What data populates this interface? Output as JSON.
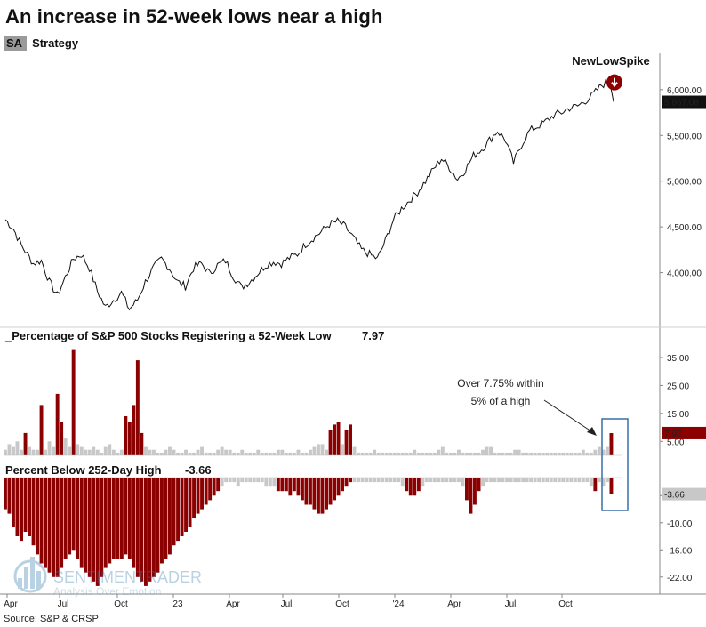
{
  "title": "An increase in 52-week lows near a high",
  "legend": {
    "tag": "SA",
    "label": "Strategy"
  },
  "source": "Source: S&P & CRSP",
  "watermark": {
    "brand": "SENTIMENTRADER",
    "tagline": "Analysis Over Emotion"
  },
  "annotation": {
    "signal_label": "NewLowSpike",
    "note_line1": "Over 7.75% within",
    "note_line2": "5% of a high"
  },
  "colors": {
    "accent": "#8b0000",
    "neutral": "#c8c8c8",
    "line": "#111111",
    "box": "#3a6fa8"
  },
  "chart_data": [
    {
      "type": "line",
      "name": "S&P 500",
      "title": "",
      "ylim": [
        3500,
        6300
      ],
      "yticks": [
        4000,
        4500,
        5000,
        5500,
        6000
      ],
      "ytick_labels": [
        "4,000.00",
        "4,500.00",
        "5,000.00",
        "5,500.00",
        "6,000.00"
      ],
      "last_value_label": "5,867.08",
      "last_value": 5867.08,
      "points": [
        [
          0,
          4580
        ],
        [
          2,
          4480
        ],
        [
          4,
          4300
        ],
        [
          7,
          4100
        ],
        [
          9,
          4130
        ],
        [
          11,
          3900
        ],
        [
          13,
          3750
        ],
        [
          15,
          3950
        ],
        [
          17,
          4150
        ],
        [
          19,
          4200
        ],
        [
          21,
          4050
        ],
        [
          23,
          3800
        ],
        [
          25,
          3620
        ],
        [
          27,
          3700
        ],
        [
          29,
          3780
        ],
        [
          31,
          3600
        ],
        [
          33,
          3700
        ],
        [
          35,
          3900
        ],
        [
          37,
          4050
        ],
        [
          39,
          4150
        ],
        [
          41,
          4050
        ],
        [
          43,
          3900
        ],
        [
          45,
          3850
        ],
        [
          47,
          4050
        ],
        [
          49,
          4100
        ],
        [
          51,
          3990
        ],
        [
          53,
          4080
        ],
        [
          55,
          4130
        ],
        [
          57,
          3960
        ],
        [
          59,
          3840
        ],
        [
          61,
          3900
        ],
        [
          63,
          3990
        ],
        [
          65,
          4080
        ],
        [
          67,
          4120
        ],
        [
          69,
          4100
        ],
        [
          71,
          4160
        ],
        [
          73,
          4200
        ],
        [
          75,
          4310
        ],
        [
          77,
          4380
        ],
        [
          79,
          4450
        ],
        [
          81,
          4530
        ],
        [
          83,
          4560
        ],
        [
          85,
          4500
        ],
        [
          87,
          4380
        ],
        [
          89,
          4250
        ],
        [
          91,
          4200
        ],
        [
          93,
          4150
        ],
        [
          95,
          4350
        ],
        [
          97,
          4580
        ],
        [
          99,
          4700
        ],
        [
          101,
          4790
        ],
        [
          103,
          4880
        ],
        [
          105,
          5000
        ],
        [
          107,
          5130
        ],
        [
          109,
          5250
        ],
        [
          111,
          5150
        ],
        [
          113,
          5020
        ],
        [
          115,
          5130
        ],
        [
          117,
          5280
        ],
        [
          119,
          5350
        ],
        [
          121,
          5450
        ],
        [
          123,
          5550
        ],
        [
          125,
          5450
        ],
        [
          127,
          5200
        ],
        [
          129,
          5400
        ],
        [
          131,
          5550
        ],
        [
          133,
          5600
        ],
        [
          135,
          5650
        ],
        [
          137,
          5720
        ],
        [
          139,
          5750
        ],
        [
          141,
          5800
        ],
        [
          143,
          5820
        ],
        [
          145,
          5880
        ],
        [
          147,
          5950
        ],
        [
          149,
          6050
        ],
        [
          151,
          6090
        ],
        [
          152,
          5867
        ]
      ]
    },
    {
      "type": "bar",
      "name": "Percentage of S&P 500 Stocks Registering a 52-Week Low",
      "title": "_Percentage of S&P 500 Stocks Registering a 52-Week Low",
      "last_value_label": "7.97",
      "last_value": 7.97,
      "threshold": 7.75,
      "ylim": [
        0,
        42
      ],
      "yticks": [
        5,
        15,
        25,
        35
      ],
      "ytick_labels": [
        "5.00",
        "15.00",
        "25.00",
        "35.00"
      ],
      "values": [
        2,
        4,
        3,
        5,
        2,
        8,
        3,
        2,
        2,
        18,
        2,
        5,
        3,
        22,
        12,
        6,
        3,
        38,
        4,
        3,
        2,
        2,
        3,
        2,
        1,
        3,
        4,
        2,
        1,
        2,
        14,
        12,
        18,
        34,
        8,
        3,
        2,
        2,
        1,
        1,
        2,
        3,
        2,
        1,
        1,
        2,
        1,
        1,
        2,
        3,
        1,
        1,
        1,
        2,
        3,
        2,
        2,
        1,
        1,
        2,
        1,
        1,
        1,
        2,
        1,
        1,
        1,
        1,
        2,
        2,
        1,
        1,
        1,
        2,
        1,
        1,
        2,
        3,
        4,
        4,
        2,
        9,
        11,
        12,
        4,
        9,
        11,
        3,
        1,
        1,
        1,
        1,
        2,
        1,
        1,
        1,
        1,
        1,
        1,
        1,
        1,
        1,
        2,
        1,
        1,
        1,
        1,
        1,
        2,
        3,
        1,
        1,
        1,
        2,
        1,
        1,
        1,
        1,
        1,
        2,
        3,
        3,
        1,
        1,
        1,
        1,
        1,
        2,
        2,
        1,
        1,
        1,
        1,
        1,
        1,
        1,
        1,
        1,
        1,
        1,
        1,
        1,
        1,
        1,
        2,
        1,
        1,
        2,
        3,
        2,
        3,
        7.97
      ]
    },
    {
      "type": "bar",
      "name": "Percent Below 252-Day High",
      "title": "Percent Below 252-Day High",
      "last_value_label": "-3.66",
      "last_value": -3.66,
      "ylim": [
        -25,
        0
      ],
      "yticks": [
        -4,
        -10,
        -16,
        -22
      ],
      "ytick_labels": [
        "-4.00",
        "-10.00",
        "-16.00",
        "-22.00"
      ],
      "values": [
        -7,
        -8,
        -11,
        -13,
        -14,
        -12,
        -13,
        -15,
        -17,
        -19,
        -20,
        -21,
        -22,
        -22,
        -20,
        -18,
        -17,
        -16,
        -18,
        -20,
        -21,
        -22,
        -23,
        -24,
        -22,
        -20,
        -19,
        -18,
        -18,
        -18,
        -17,
        -18,
        -20,
        -22,
        -23,
        -24,
        -23,
        -22,
        -21,
        -19,
        -18,
        -17,
        -15,
        -14,
        -13,
        -12,
        -11,
        -9,
        -8,
        -7,
        -6,
        -5,
        -4,
        -3,
        -2,
        -1,
        -1,
        -1,
        -2,
        -1,
        -1,
        -1,
        -1,
        -1,
        -1,
        -2,
        -2,
        -2,
        -3,
        -3,
        -3,
        -4,
        -3,
        -4,
        -5,
        -6,
        -6,
        -7,
        -8,
        -8,
        -7,
        -6,
        -5,
        -4,
        -3,
        -2,
        -1,
        -1,
        -1,
        -1,
        -1,
        -1,
        -1,
        -1,
        -1,
        -1,
        -1,
        -1,
        -1,
        -2,
        -3,
        -4,
        -4,
        -3,
        -2,
        -1,
        -1,
        -1,
        -1,
        -1,
        -1,
        -1,
        -1,
        -1,
        -2,
        -5,
        -8,
        -6,
        -3,
        -2,
        -1,
        -1,
        -1,
        -1,
        -1,
        -1,
        -1,
        -1,
        -1,
        -1,
        -1,
        -1,
        -1,
        -1,
        -1,
        -1,
        -1,
        -1,
        -1,
        -1,
        -1,
        -1,
        -1,
        -1,
        -1,
        -1,
        -2,
        -3,
        -1,
        -2,
        -1,
        -3.66
      ]
    }
  ],
  "x_axis": {
    "labels": [
      "Apr",
      "Jul",
      "Oct",
      "'23",
      "Apr",
      "Jul",
      "Oct",
      "'24",
      "Apr",
      "Jul",
      "Oct"
    ]
  }
}
